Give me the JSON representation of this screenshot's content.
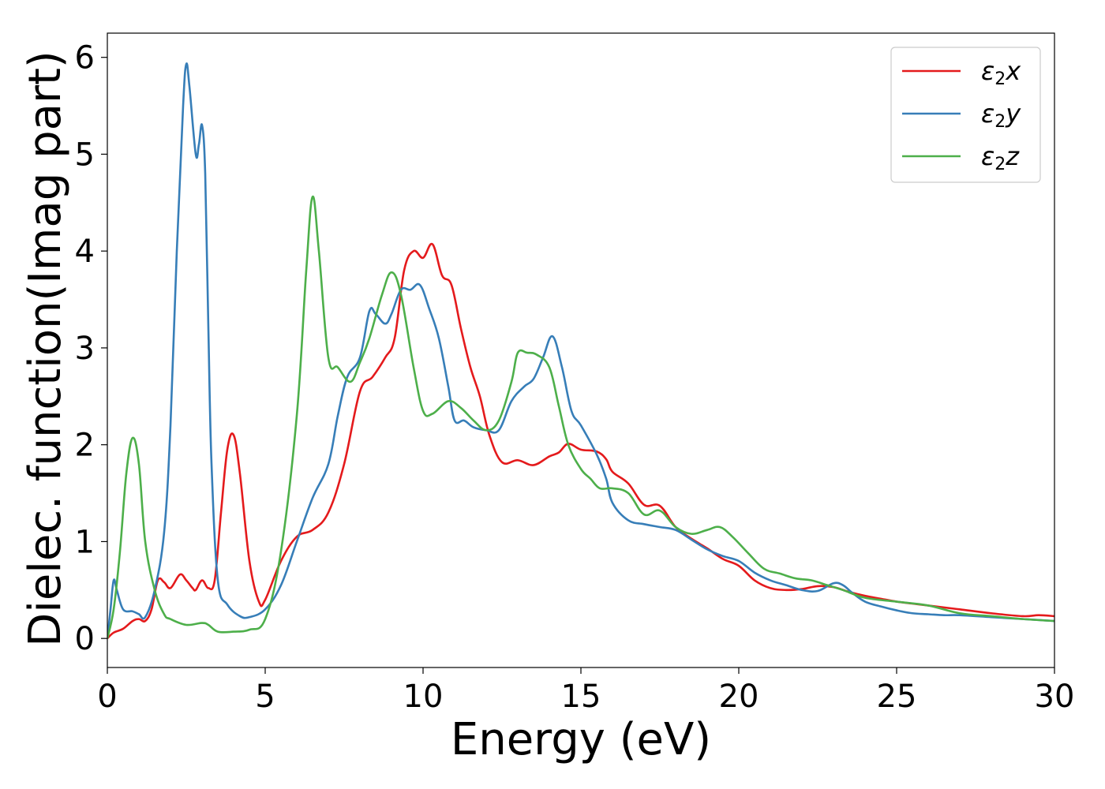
{
  "chart_data": {
    "type": "line",
    "title": "",
    "xlabel": "Energy (eV)",
    "ylabel": "Dielec. function(Imag part)",
    "xlim": [
      0,
      30
    ],
    "ylim": [
      -0.3,
      6.25
    ],
    "xticks": [
      0,
      5,
      10,
      15,
      20,
      25,
      30
    ],
    "yticks": [
      0,
      1,
      2,
      3,
      4,
      5,
      6
    ],
    "xtick_labels": [
      "0",
      "5",
      "10",
      "15",
      "20",
      "25",
      "30"
    ],
    "ytick_labels": [
      "0",
      "1",
      "2",
      "3",
      "4",
      "5",
      "6"
    ],
    "grid": false,
    "legend_position": "top-right",
    "series": [
      {
        "name": "ε₂x",
        "legend_main": "ε",
        "legend_sub": "2",
        "legend_tail": "x",
        "color": "#e41a1c",
        "points": [
          [
            0,
            0
          ],
          [
            0.2,
            0.06
          ],
          [
            0.5,
            0.1
          ],
          [
            0.8,
            0.18
          ],
          [
            1.0,
            0.2
          ],
          [
            1.2,
            0.18
          ],
          [
            1.4,
            0.3
          ],
          [
            1.6,
            0.6
          ],
          [
            1.8,
            0.58
          ],
          [
            2.0,
            0.52
          ],
          [
            2.3,
            0.66
          ],
          [
            2.5,
            0.6
          ],
          [
            2.7,
            0.52
          ],
          [
            2.8,
            0.5
          ],
          [
            3.0,
            0.6
          ],
          [
            3.2,
            0.52
          ],
          [
            3.4,
            0.6
          ],
          [
            3.6,
            1.3
          ],
          [
            3.8,
            1.95
          ],
          [
            4.0,
            2.1
          ],
          [
            4.2,
            1.7
          ],
          [
            4.5,
            0.8
          ],
          [
            4.8,
            0.38
          ],
          [
            5.0,
            0.4
          ],
          [
            5.5,
            0.8
          ],
          [
            6.0,
            1.05
          ],
          [
            6.5,
            1.12
          ],
          [
            7.0,
            1.3
          ],
          [
            7.5,
            1.8
          ],
          [
            8.0,
            2.55
          ],
          [
            8.4,
            2.7
          ],
          [
            8.8,
            2.9
          ],
          [
            9.1,
            3.1
          ],
          [
            9.4,
            3.8
          ],
          [
            9.7,
            4.0
          ],
          [
            10.0,
            3.93
          ],
          [
            10.3,
            4.07
          ],
          [
            10.6,
            3.75
          ],
          [
            10.9,
            3.65
          ],
          [
            11.2,
            3.2
          ],
          [
            11.5,
            2.8
          ],
          [
            11.8,
            2.5
          ],
          [
            12.1,
            2.1
          ],
          [
            12.5,
            1.82
          ],
          [
            13.0,
            1.84
          ],
          [
            13.5,
            1.79
          ],
          [
            14.0,
            1.88
          ],
          [
            14.3,
            1.92
          ],
          [
            14.6,
            2.01
          ],
          [
            15.0,
            1.95
          ],
          [
            15.5,
            1.93
          ],
          [
            15.8,
            1.85
          ],
          [
            16.0,
            1.72
          ],
          [
            16.5,
            1.6
          ],
          [
            17.0,
            1.38
          ],
          [
            17.5,
            1.37
          ],
          [
            18.0,
            1.15
          ],
          [
            18.5,
            1.03
          ],
          [
            19.0,
            0.93
          ],
          [
            19.5,
            0.82
          ],
          [
            20.0,
            0.75
          ],
          [
            20.5,
            0.6
          ],
          [
            21.0,
            0.52
          ],
          [
            21.5,
            0.5
          ],
          [
            22.0,
            0.51
          ],
          [
            22.5,
            0.54
          ],
          [
            23.0,
            0.53
          ],
          [
            23.5,
            0.48
          ],
          [
            24.0,
            0.44
          ],
          [
            24.5,
            0.41
          ],
          [
            25.0,
            0.38
          ],
          [
            25.5,
            0.36
          ],
          [
            26.0,
            0.34
          ],
          [
            27.0,
            0.3
          ],
          [
            28.0,
            0.26
          ],
          [
            29.0,
            0.23
          ],
          [
            29.5,
            0.24
          ],
          [
            30.0,
            0.23
          ]
        ]
      },
      {
        "name": "ε₂y",
        "legend_main": "ε",
        "legend_sub": "2",
        "legend_tail": "y",
        "color": "#377eb8",
        "points": [
          [
            0,
            0
          ],
          [
            0.1,
            0.3
          ],
          [
            0.2,
            0.6
          ],
          [
            0.3,
            0.5
          ],
          [
            0.5,
            0.3
          ],
          [
            0.8,
            0.28
          ],
          [
            1.0,
            0.25
          ],
          [
            1.2,
            0.22
          ],
          [
            1.5,
            0.5
          ],
          [
            1.8,
            1.1
          ],
          [
            2.0,
            2.2
          ],
          [
            2.2,
            4.0
          ],
          [
            2.4,
            5.5
          ],
          [
            2.5,
            5.93
          ],
          [
            2.6,
            5.7
          ],
          [
            2.8,
            5.0
          ],
          [
            2.9,
            5.1
          ],
          [
            3.0,
            5.3
          ],
          [
            3.1,
            4.8
          ],
          [
            3.2,
            3.2
          ],
          [
            3.3,
            1.8
          ],
          [
            3.5,
            0.6
          ],
          [
            3.8,
            0.35
          ],
          [
            4.2,
            0.23
          ],
          [
            4.5,
            0.22
          ],
          [
            5.0,
            0.3
          ],
          [
            5.5,
            0.55
          ],
          [
            6.0,
            1.0
          ],
          [
            6.5,
            1.45
          ],
          [
            7.0,
            1.8
          ],
          [
            7.3,
            2.3
          ],
          [
            7.6,
            2.7
          ],
          [
            8.0,
            2.9
          ],
          [
            8.3,
            3.38
          ],
          [
            8.5,
            3.35
          ],
          [
            8.8,
            3.25
          ],
          [
            9.0,
            3.35
          ],
          [
            9.3,
            3.6
          ],
          [
            9.6,
            3.6
          ],
          [
            9.9,
            3.65
          ],
          [
            10.2,
            3.4
          ],
          [
            10.5,
            3.1
          ],
          [
            10.8,
            2.6
          ],
          [
            11.0,
            2.25
          ],
          [
            11.3,
            2.25
          ],
          [
            11.6,
            2.18
          ],
          [
            12.0,
            2.15
          ],
          [
            12.4,
            2.15
          ],
          [
            12.8,
            2.45
          ],
          [
            13.2,
            2.6
          ],
          [
            13.5,
            2.68
          ],
          [
            13.8,
            2.9
          ],
          [
            14.1,
            3.12
          ],
          [
            14.4,
            2.8
          ],
          [
            14.7,
            2.35
          ],
          [
            15.0,
            2.2
          ],
          [
            15.5,
            1.9
          ],
          [
            15.8,
            1.65
          ],
          [
            16.0,
            1.4
          ],
          [
            16.5,
            1.22
          ],
          [
            17.0,
            1.18
          ],
          [
            17.5,
            1.15
          ],
          [
            18.0,
            1.12
          ],
          [
            18.5,
            1.02
          ],
          [
            19.0,
            0.92
          ],
          [
            19.5,
            0.85
          ],
          [
            20.0,
            0.8
          ],
          [
            20.5,
            0.68
          ],
          [
            21.0,
            0.6
          ],
          [
            21.5,
            0.55
          ],
          [
            22.0,
            0.5
          ],
          [
            22.5,
            0.49
          ],
          [
            23.0,
            0.57
          ],
          [
            23.3,
            0.55
          ],
          [
            23.6,
            0.47
          ],
          [
            24.0,
            0.38
          ],
          [
            24.5,
            0.33
          ],
          [
            25.0,
            0.29
          ],
          [
            25.5,
            0.26
          ],
          [
            26.0,
            0.25
          ],
          [
            26.5,
            0.24
          ],
          [
            27.0,
            0.24
          ],
          [
            28.0,
            0.22
          ],
          [
            29.0,
            0.2
          ],
          [
            30.0,
            0.18
          ]
        ]
      },
      {
        "name": "ε₂z",
        "legend_main": "ε",
        "legend_sub": "2",
        "legend_tail": "z",
        "color": "#4daf4a",
        "points": [
          [
            0,
            0
          ],
          [
            0.2,
            0.3
          ],
          [
            0.4,
            0.9
          ],
          [
            0.6,
            1.7
          ],
          [
            0.8,
            2.07
          ],
          [
            1.0,
            1.8
          ],
          [
            1.2,
            1.0
          ],
          [
            1.5,
            0.5
          ],
          [
            1.8,
            0.25
          ],
          [
            2.0,
            0.2
          ],
          [
            2.5,
            0.14
          ],
          [
            3.0,
            0.16
          ],
          [
            3.2,
            0.14
          ],
          [
            3.5,
            0.07
          ],
          [
            4.0,
            0.07
          ],
          [
            4.5,
            0.09
          ],
          [
            5.0,
            0.2
          ],
          [
            5.5,
            0.9
          ],
          [
            6.0,
            2.3
          ],
          [
            6.3,
            3.8
          ],
          [
            6.5,
            4.56
          ],
          [
            6.7,
            4.0
          ],
          [
            7.0,
            2.9
          ],
          [
            7.3,
            2.8
          ],
          [
            7.7,
            2.65
          ],
          [
            8.0,
            2.85
          ],
          [
            8.3,
            3.1
          ],
          [
            8.7,
            3.55
          ],
          [
            9.0,
            3.78
          ],
          [
            9.3,
            3.55
          ],
          [
            9.7,
            2.8
          ],
          [
            10.0,
            2.35
          ],
          [
            10.3,
            2.32
          ],
          [
            10.8,
            2.45
          ],
          [
            11.2,
            2.38
          ],
          [
            11.6,
            2.25
          ],
          [
            12.0,
            2.15
          ],
          [
            12.4,
            2.25
          ],
          [
            12.8,
            2.65
          ],
          [
            13.0,
            2.95
          ],
          [
            13.3,
            2.95
          ],
          [
            13.6,
            2.93
          ],
          [
            14.0,
            2.8
          ],
          [
            14.3,
            2.4
          ],
          [
            14.6,
            2.0
          ],
          [
            15.0,
            1.75
          ],
          [
            15.3,
            1.65
          ],
          [
            15.6,
            1.55
          ],
          [
            16.0,
            1.55
          ],
          [
            16.5,
            1.5
          ],
          [
            17.0,
            1.28
          ],
          [
            17.5,
            1.32
          ],
          [
            18.0,
            1.15
          ],
          [
            18.5,
            1.08
          ],
          [
            19.0,
            1.12
          ],
          [
            19.4,
            1.15
          ],
          [
            19.8,
            1.05
          ],
          [
            20.3,
            0.88
          ],
          [
            20.8,
            0.72
          ],
          [
            21.3,
            0.67
          ],
          [
            21.8,
            0.62
          ],
          [
            22.3,
            0.6
          ],
          [
            22.8,
            0.55
          ],
          [
            23.3,
            0.5
          ],
          [
            24.0,
            0.42
          ],
          [
            25.0,
            0.38
          ],
          [
            26.0,
            0.34
          ],
          [
            27.0,
            0.26
          ],
          [
            28.0,
            0.23
          ],
          [
            29.0,
            0.2
          ],
          [
            30.0,
            0.18
          ]
        ]
      }
    ]
  }
}
